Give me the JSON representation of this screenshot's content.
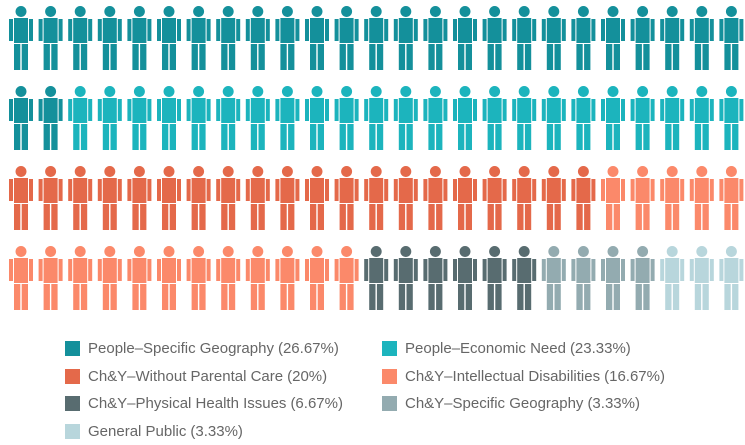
{
  "chart_data": {
    "type": "pictograph",
    "series": [
      {
        "name": "People–Specific Geography",
        "color": "#14909b",
        "values": [
          26.67
        ],
        "value_labels": [
          "(26.67%)"
        ]
      },
      {
        "name": "People–Economic Need",
        "color": "#1cb4bd",
        "values": [
          23.33
        ],
        "value_labels": [
          "(23.33%)"
        ]
      },
      {
        "name": "Ch&Y–Without Parental Care",
        "color": "#e4694a",
        "values": [
          20
        ],
        "value_labels": [
          "(20%)"
        ]
      },
      {
        "name": "Ch&Y–Intellectual Disabilities",
        "color": "#fb896a",
        "values": [
          16.67
        ],
        "value_labels": [
          "(16.67%)"
        ]
      },
      {
        "name": "Ch&Y–Physical Health Issues",
        "color": "#586c70",
        "values": [
          6.67
        ],
        "value_labels": [
          "(6.67%)"
        ]
      },
      {
        "name": "Ch&Y–Specific Geography",
        "color": "#93abb0",
        "values": [
          3.33
        ],
        "value_labels": [
          "(3.33%)"
        ]
      },
      {
        "name": "General Public",
        "color": "#b8d6dc",
        "values": [
          3.33
        ],
        "value_labels": [
          "(3.33%)"
        ]
      }
    ]
  }
}
